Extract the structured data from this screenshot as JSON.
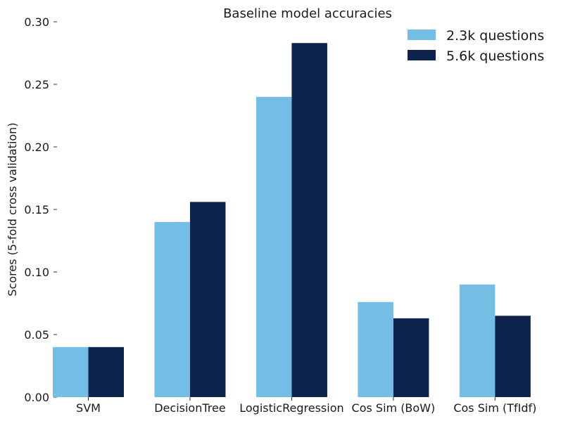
{
  "chart_data": {
    "type": "bar",
    "title": "Baseline model accuracies",
    "xlabel": "",
    "ylabel": "Scores (5-fold cross validation)",
    "ylim": [
      0,
      0.3
    ],
    "yticks": [
      "0.00",
      "0.05",
      "0.10",
      "0.15",
      "0.20",
      "0.25",
      "0.30"
    ],
    "categories": [
      "SVM",
      "DecisionTree",
      "LogisticRegression",
      "Cos Sim (BoW)",
      "Cos Sim (TfIdf)"
    ],
    "series": [
      {
        "name": "2.3k questions",
        "color": "#74bee6",
        "values": [
          0.04,
          0.14,
          0.24,
          0.076,
          0.09
        ]
      },
      {
        "name": "5.6k questions",
        "color": "#0e234d",
        "values": [
          0.04,
          0.156,
          0.283,
          0.063,
          0.065
        ]
      }
    ],
    "grid": false,
    "legend": "top-right"
  }
}
